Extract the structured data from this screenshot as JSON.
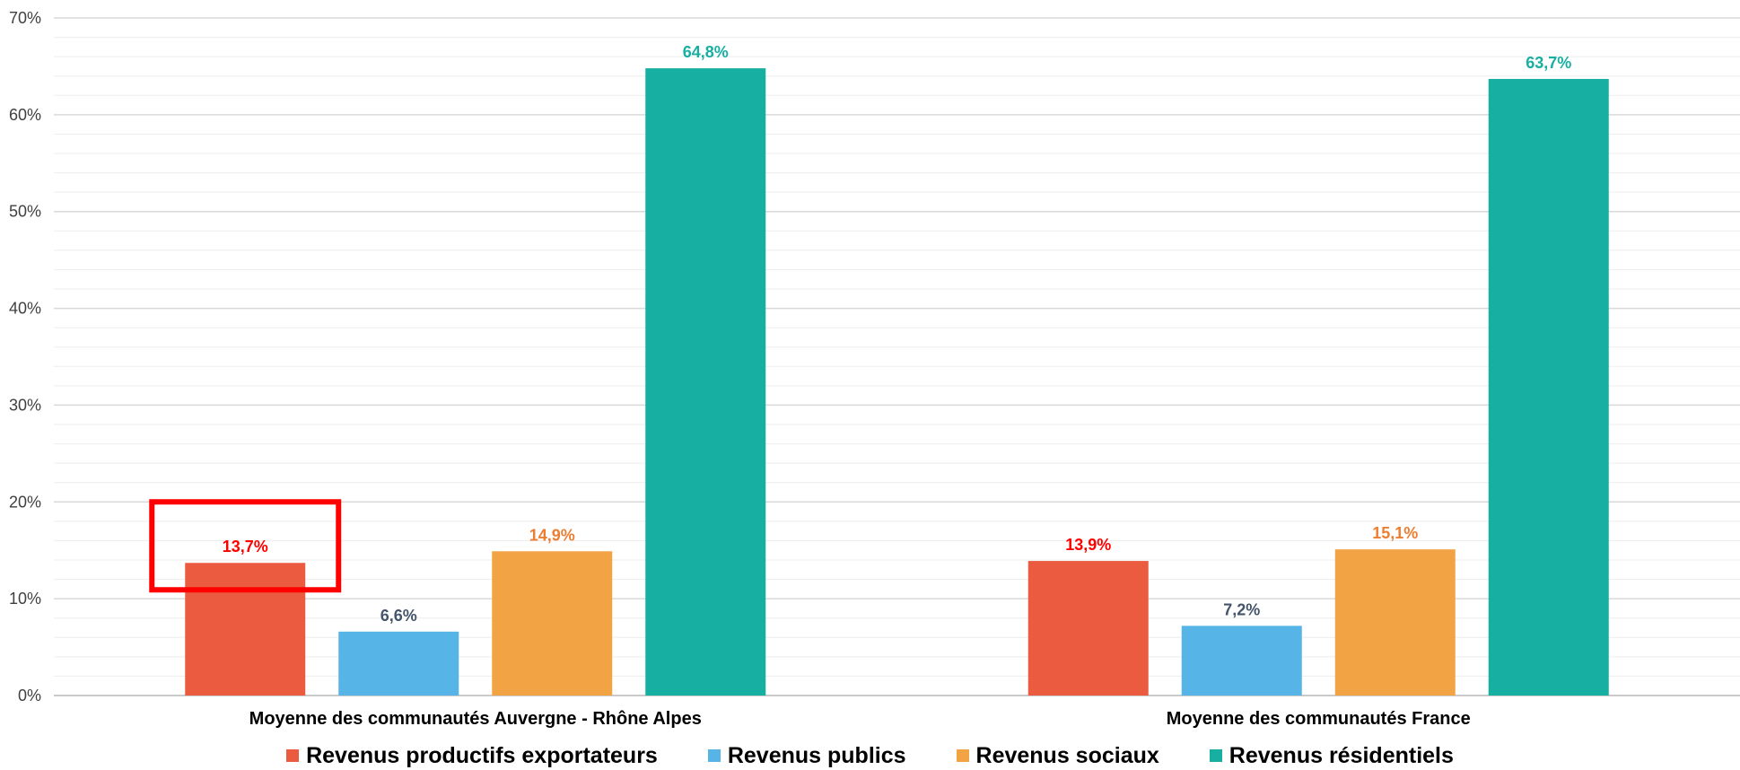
{
  "chart_data": {
    "type": "bar",
    "title": "",
    "xlabel": "",
    "ylabel": "",
    "ylim": [
      0,
      70
    ],
    "ytick_step": 10,
    "ytick_labels": [
      "0%",
      "10%",
      "20%",
      "30%",
      "40%",
      "50%",
      "60%",
      "70%"
    ],
    "minor_grid_step": 2,
    "grid": true,
    "legend_position": "bottom",
    "categories": [
      "Moyenne des communautés Auvergne - Rhône Alpes",
      "Moyenne des communautés France"
    ],
    "series": [
      {
        "name": "Revenus productifs exportateurs",
        "color": "#EB5B3F",
        "label_color": "#FF0000",
        "values": [
          13.7,
          13.9
        ],
        "labels": [
          "13,7%",
          "13,9%"
        ]
      },
      {
        "name": "Revenus publics",
        "color": "#56B4E6",
        "label_color": "#44546A",
        "values": [
          6.6,
          7.2
        ],
        "labels": [
          "6,6%",
          "7,2%"
        ]
      },
      {
        "name": "Revenus sociaux",
        "color": "#F2A444",
        "label_color": "#ED7D31",
        "values": [
          14.9,
          15.1
        ],
        "labels": [
          "14,9%",
          "15,1%"
        ]
      },
      {
        "name": "Revenus résidentiels",
        "color": "#18AFA3",
        "label_color": "#18AFA3",
        "values": [
          64.8,
          63.7
        ],
        "labels": [
          "64,8%",
          "63,7%"
        ]
      }
    ],
    "annotations": [
      {
        "type": "highlight-box",
        "color": "#FF0000",
        "category_index": 0,
        "series_index": 0
      }
    ]
  }
}
